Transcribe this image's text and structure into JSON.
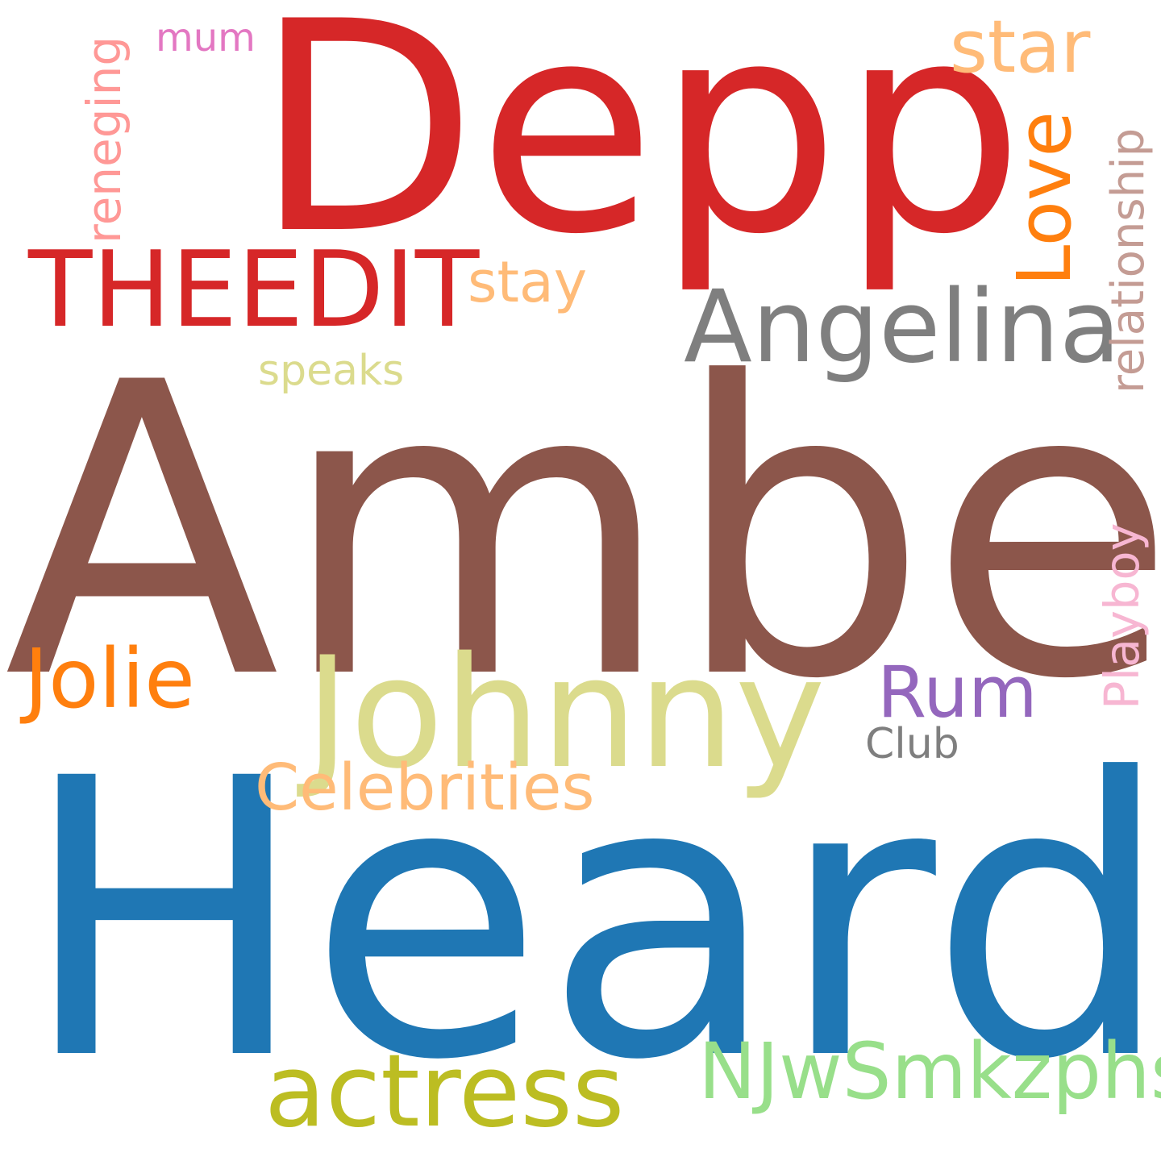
{
  "words": [
    {
      "text": "Depp",
      "color": "#d62728"
    },
    {
      "text": "Amber",
      "color": "#8c564b"
    },
    {
      "text": "Heard",
      "color": "#1f77b4"
    },
    {
      "text": "Johnny",
      "color": "#dbdb8d"
    },
    {
      "text": "THEEDIT",
      "color": "#d62728"
    },
    {
      "text": "Angelina",
      "color": "#7f7f7f"
    },
    {
      "text": "actress",
      "color": "#bcbd22"
    },
    {
      "text": "NJwSmkzphs",
      "color": "#98df8a"
    },
    {
      "text": "Celebrities",
      "color": "#ffbb78"
    },
    {
      "text": "Jolie",
      "color": "#ff7f0e"
    },
    {
      "text": "Love",
      "color": "#ff7f0e"
    },
    {
      "text": "star",
      "color": "#ffbb78"
    },
    {
      "text": "stay",
      "color": "#ffbb78"
    },
    {
      "text": "Rum",
      "color": "#9467bd"
    },
    {
      "text": "relationship",
      "color": "#c49c94"
    },
    {
      "text": "Playboy",
      "color": "#f7b6d2"
    },
    {
      "text": "speaks",
      "color": "#dbdb8d"
    },
    {
      "text": "reneging",
      "color": "#ff9896"
    },
    {
      "text": "Club",
      "color": "#7f7f7f"
    },
    {
      "text": "mum",
      "color": "#e377c2"
    }
  ]
}
